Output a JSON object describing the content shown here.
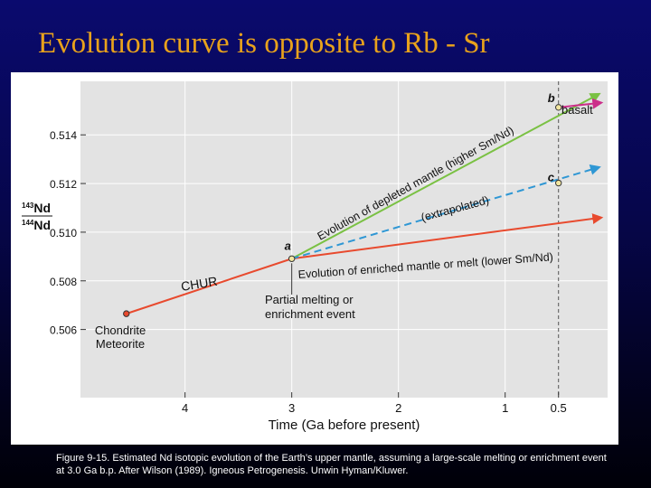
{
  "slide": {
    "title": "Evolution curve is opposite to Rb - Sr",
    "caption": "Figure 9-15. Estimated Nd isotopic evolution of the Earth’s upper mantle, assuming a large-scale melting or enrichment event at 3.0 Ga b.p. After Wilson (1989). Igneous Petrogenesis. Unwin Hyman/Kluwer."
  },
  "colors": {
    "plot_background": "#e3e3e3",
    "chur": "#e84a2e",
    "depleted": "#7ac143",
    "extrapolated": "#2f97d4",
    "basalt": "#cc2e8a",
    "grid": "#ffffff",
    "text": "#111111"
  },
  "chart_data": {
    "type": "line",
    "title": "",
    "xlabel": "Time (Ga before present)",
    "ylabel_top": "143Nd",
    "ylabel_bottom": "144Nd",
    "x_reversed": true,
    "xlim": [
      4.98,
      0.04
    ],
    "ylim": [
      0.5032,
      0.5162
    ],
    "x_ticks": [
      4,
      3,
      2,
      1,
      0.5
    ],
    "x_tick_labels": [
      "4",
      "3",
      "2",
      "1",
      "0.5"
    ],
    "y_ticks": [
      0.506,
      0.508,
      0.51,
      0.512,
      0.514
    ],
    "y_tick_labels": [
      "0.506",
      "0.508",
      "0.510",
      "0.512",
      "0.514"
    ],
    "grid": true,
    "reference_line_x": 0.5,
    "series": [
      {
        "name": "CHUR",
        "style": "solid",
        "color_key": "chur",
        "x": [
          4.55,
          3.0,
          0.1
        ],
        "y": [
          0.50665,
          0.50891,
          0.5106
        ]
      },
      {
        "name": "Evolution of depleted mantle (higher Sm/Nd)",
        "style": "solid",
        "color_key": "depleted",
        "x": [
          3.0,
          0.12
        ],
        "y": [
          0.50891,
          0.51568
        ]
      },
      {
        "name": "(extrapolated)",
        "style": "dashed",
        "color_key": "extrapolated",
        "x": [
          3.0,
          0.12
        ],
        "y": [
          0.50891,
          0.51267
        ]
      },
      {
        "name": "basalt",
        "style": "solid",
        "color_key": "basalt",
        "x": [
          0.5,
          0.1
        ],
        "y": [
          0.51513,
          0.51532
        ]
      }
    ],
    "points": [
      {
        "label": "a",
        "x": 3.0,
        "y": 0.50891
      },
      {
        "label": "b",
        "x": 0.5,
        "y": 0.51513
      },
      {
        "label": "c",
        "x": 0.5,
        "y": 0.51202
      },
      {
        "label": "",
        "x": 4.55,
        "y": 0.50665
      }
    ],
    "annotations": [
      {
        "key": "chondrite",
        "lines": [
          "Chondrite",
          "Meteorite"
        ]
      },
      {
        "key": "chur",
        "lines": [
          "CHUR"
        ]
      },
      {
        "key": "depleted",
        "lines": [
          "Evolution of depleted mantle (higher Sm/Nd)"
        ]
      },
      {
        "key": "extrapolated",
        "lines": [
          "(extrapolated)"
        ]
      },
      {
        "key": "enriched",
        "lines": [
          "Evolution of enriched mantle or melt (lower Sm/Nd)"
        ]
      },
      {
        "key": "partial",
        "lines": [
          "Partial melting or",
          "enrichment event"
        ]
      },
      {
        "key": "basalt",
        "lines": [
          "basalt"
        ]
      }
    ]
  }
}
